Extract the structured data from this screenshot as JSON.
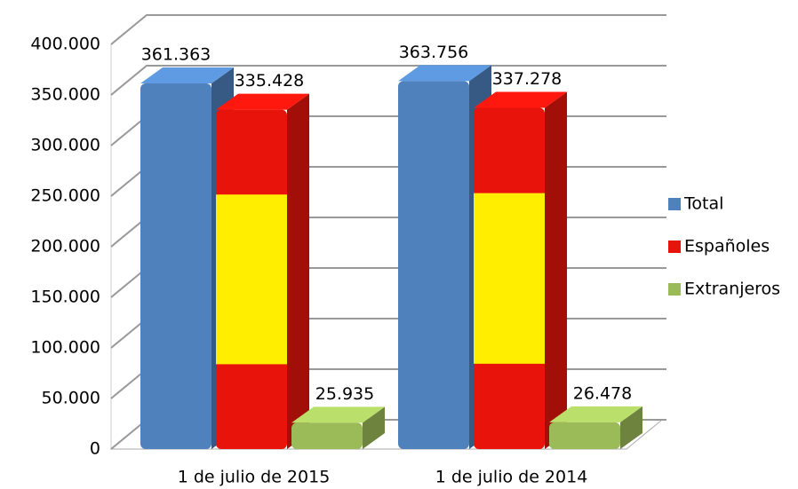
{
  "chart_data": {
    "type": "bar3d",
    "categories": [
      "1 de julio de 2015",
      "1 de julio de 2014"
    ],
    "series": [
      {
        "name": "Total",
        "color": "#4f81bd",
        "values": [
          361363,
          363756
        ],
        "value_labels": [
          "361.363",
          "363.756"
        ]
      },
      {
        "name": "Españoles",
        "color": "#e8140c",
        "values": [
          335428,
          337278
        ],
        "value_labels": [
          "335.428",
          "337.278"
        ]
      },
      {
        "name": "Extranjeros",
        "color": "#9bbb59",
        "values": [
          25935,
          26478
        ],
        "value_labels": [
          "25.935",
          "26.478"
        ]
      }
    ],
    "ylim": [
      0,
      400000
    ],
    "yticks": [
      0,
      {
        "value": 50000,
        "label": "50.000"
      },
      {
        "value": 100000,
        "label": "100.000"
      },
      {
        "value": 150000,
        "label": "150.000"
      },
      {
        "value": 200000,
        "label": "200.000"
      },
      {
        "value": 250000,
        "label": "250.000"
      },
      {
        "value": 300000,
        "label": "300.000"
      },
      {
        "value": 350000,
        "label": "350.000"
      },
      {
        "value": 400000,
        "label": "400.000"
      }
    ],
    "grid": true,
    "legend": "right"
  }
}
